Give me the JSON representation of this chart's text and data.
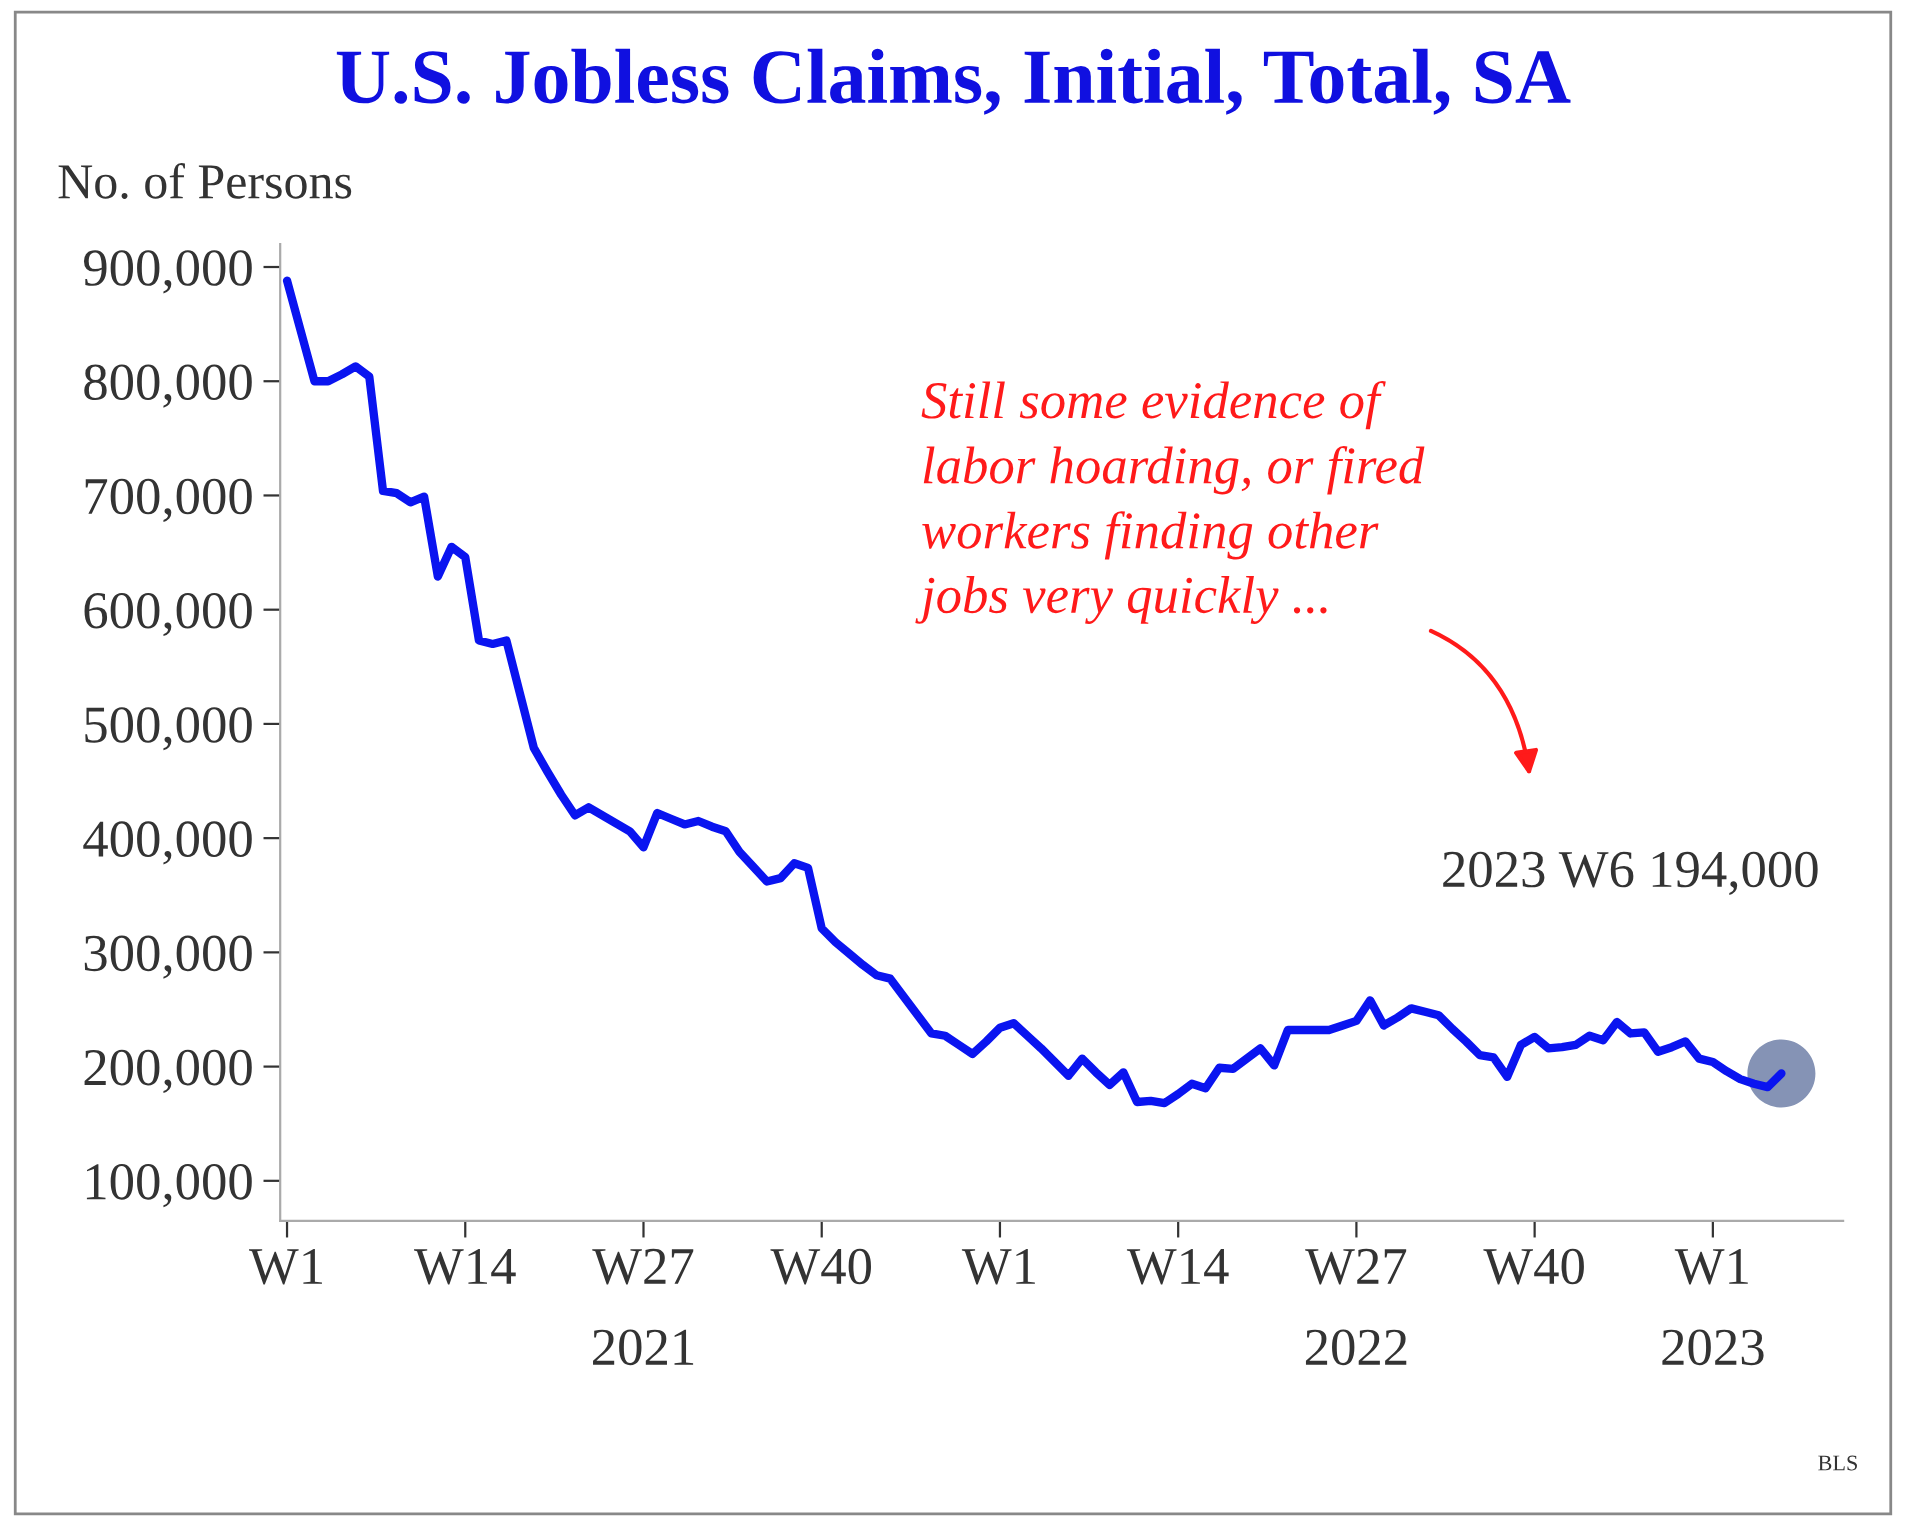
{
  "chart_data": {
    "type": "line",
    "title": "U.S. Jobless Claims, Initial, Total, SA",
    "ylabel": "No. of Persons",
    "categories": [
      "W1",
      null,
      null,
      null,
      null,
      null,
      null,
      null,
      null,
      null,
      null,
      null,
      null,
      "W14",
      null,
      null,
      null,
      null,
      null,
      null,
      null,
      null,
      null,
      null,
      null,
      null,
      "W27\n2021",
      null,
      null,
      null,
      null,
      null,
      null,
      null,
      null,
      null,
      null,
      null,
      null,
      "W40",
      null,
      null,
      null,
      null,
      null,
      null,
      null,
      null,
      null,
      null,
      null,
      null,
      "W1",
      null,
      null,
      null,
      null,
      null,
      null,
      null,
      null,
      null,
      null,
      null,
      null,
      "W14",
      null,
      null,
      null,
      null,
      null,
      null,
      null,
      null,
      null,
      null,
      null,
      null,
      "W27\n2022",
      null,
      null,
      null,
      null,
      null,
      null,
      null,
      null,
      null,
      null,
      null,
      null,
      "W40",
      null,
      null,
      null,
      null,
      null,
      null,
      null,
      null,
      null,
      null,
      null,
      null,
      "W1\n2023",
      null,
      null,
      null,
      null,
      null
    ],
    "series": [
      {
        "color": "#0a14f0",
        "values": [
          888000,
          844000,
          800000,
          800000,
          806000,
          813000,
          804000,
          704000,
          702000,
          694000,
          699000,
          629000,
          655000,
          646000,
          573000,
          570000,
          573000,
          526000,
          479000,
          458000,
          438000,
          420000,
          427000,
          420000,
          413000,
          406000,
          392000,
          422000,
          417000,
          412000,
          415000,
          410000,
          406000,
          388000,
          375000,
          362000,
          365000,
          378000,
          374000,
          321000,
          309000,
          299000,
          289000,
          280000,
          277000,
          261000,
          245000,
          229000,
          227000,
          219000,
          211000,
          222000,
          234000,
          238000,
          227000,
          216000,
          204000,
          192000,
          207000,
          195000,
          184000,
          195000,
          169000,
          170000,
          168000,
          176000,
          185000,
          181000,
          199000,
          198000,
          207000,
          216000,
          201000,
          232000,
          232000,
          232000,
          232000,
          236000,
          240000,
          258000,
          236000,
          243000,
          251000,
          248000,
          245000,
          233000,
          222000,
          210000,
          208000,
          191000,
          219000,
          226000,
          216000,
          217000,
          219000,
          227000,
          223000,
          239000,
          229000,
          230000,
          213000,
          217000,
          222000,
          207000,
          204000,
          196000,
          189000,
          185000,
          182000,
          194000
        ]
      },
      {
        "type": "scatter",
        "marker": "circle",
        "color": "#8593b5",
        "values": [
          null,
          null,
          null,
          null,
          null,
          null,
          null,
          null,
          null,
          null,
          null,
          null,
          null,
          null,
          null,
          null,
          null,
          null,
          null,
          null,
          null,
          null,
          null,
          null,
          null,
          null,
          null,
          null,
          null,
          null,
          null,
          null,
          null,
          null,
          null,
          null,
          null,
          null,
          null,
          null,
          null,
          null,
          null,
          null,
          null,
          null,
          null,
          null,
          null,
          null,
          null,
          null,
          null,
          null,
          null,
          null,
          null,
          null,
          null,
          null,
          null,
          null,
          null,
          null,
          null,
          null,
          null,
          null,
          null,
          null,
          null,
          null,
          null,
          null,
          null,
          null,
          null,
          null,
          null,
          null,
          null,
          null,
          null,
          null,
          null,
          null,
          null,
          null,
          null,
          null,
          null,
          null,
          null,
          null,
          null,
          null,
          null,
          null,
          null,
          null,
          null,
          null,
          null,
          null,
          null,
          null,
          null,
          null,
          null,
          194000
        ]
      }
    ],
    "ylim": [
      65000,
      920000
    ],
    "yticks": [
      {
        "value": 100000,
        "label": "100,000"
      },
      {
        "value": 200000,
        "label": "200,000"
      },
      {
        "value": 300000,
        "label": "300,000"
      },
      {
        "value": 400000,
        "label": "400,000"
      },
      {
        "value": 500000,
        "label": "500,000"
      },
      {
        "value": 600000,
        "label": "600,000"
      },
      {
        "value": 700000,
        "label": "700,000"
      },
      {
        "value": 800000,
        "label": "800,000"
      },
      {
        "value": 900000,
        "label": "900,000"
      }
    ],
    "grid": false,
    "legend": false,
    "marker": "none",
    "line_style": "solid",
    "annotations": [
      "Still some evidence of\nlabor hoarding, or fired\nworkers finding other\njobs very quickly ...",
      "2023 W6 194,000",
      "BLS"
    ]
  }
}
